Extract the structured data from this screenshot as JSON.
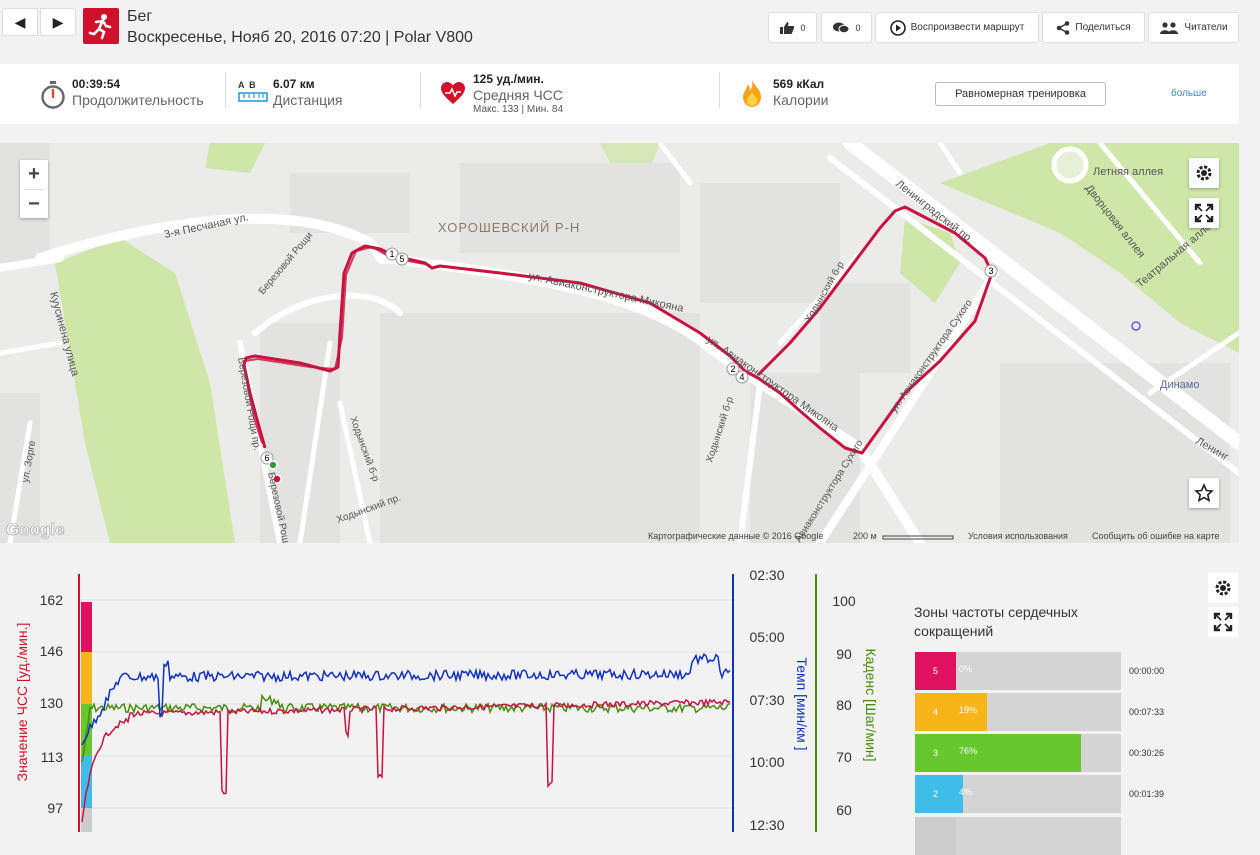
{
  "header": {
    "prev_label": "◀",
    "next_label": "▶",
    "sport": "Бег",
    "subtitle": "Воскресенье, Нояб 20, 2016 07:20 | Polar V800",
    "likes": "0",
    "comments": "0",
    "play_route": "Воспроизвести маршрут",
    "share": "Поделиться",
    "readers": "Читатели"
  },
  "stats": {
    "duration_value": "00:39:54",
    "duration_label": "Продолжительность",
    "distance_ab": "A  B",
    "distance_value": "6.07 км",
    "distance_label": "Дистанция",
    "hr_value": "125 уд./мин.",
    "hr_label": "Средняя ЧСС",
    "hr_sub": "Макс. 133  |  Мин. 84",
    "cal_value": "569 кКал",
    "cal_label": "Калории",
    "training_type": "Равномерная тренировка",
    "more": "больше"
  },
  "map": {
    "district": "ХОРОШЕВСКИЙ Р-Н",
    "streets": {
      "pesch": "3-я Песчаная ул.",
      "mikoyana1": "ул. Авиаконструктора Микояна",
      "mikoyana2": "ул. Авиаконструктора Микояна",
      "leningradsky": "Ленинградский пр.",
      "letnyaya": "Летняя аллея",
      "dvortsovaya": "Дворцовая аллея",
      "teatralnaya": "Театральная аллея",
      "khodynsky1": "Ходынский б-р",
      "khodynsky2": "Ходынский б-р",
      "khodynsky3": "Ходынский б-р",
      "sukhogo1": "ул. Авиаконструктора Сухого",
      "sukhogo2": "Авиаконструктора Сухого",
      "kusinena": "Куусинена улица",
      "berezovaya1": "Березовой Рощи",
      "berezovaya2": "Березовой Рощи пр.",
      "berezovaya3": "Березовой Рощи",
      "zorge": "ул. Зорге",
      "khodynsky_pr": "Ходынский пр.",
      "dinamo": "Динамо",
      "lenin_edge": "Ленинг"
    },
    "markers": [
      "1",
      "5",
      "2",
      "4",
      "3",
      "6"
    ],
    "zoom_in": "+",
    "zoom_out": "−",
    "google": "Google",
    "attrib_data": "Картографические данные © 2016 Google",
    "scale": "200 м",
    "terms": "Условия использования",
    "report": "Сообщить об ошибке на карте"
  },
  "chart_data": {
    "type": "line",
    "y_hr": {
      "label": "Значение ЧСС [уд./мин.]",
      "ticks": [
        "162",
        "146",
        "130",
        "113",
        "97"
      ],
      "color": "#d0112b"
    },
    "y_pace": {
      "label": "Темп [мин/км ]",
      "ticks": [
        "02:30",
        "05:00",
        "07:30",
        "10:00",
        "12:30"
      ],
      "color": "#1030c0"
    },
    "y_cad": {
      "label": "Каденс [Шаг/мин]",
      "ticks": [
        "100",
        "90",
        "80",
        "70",
        "60"
      ],
      "color": "#4a8a10"
    },
    "zone_colors": [
      "#e0125f",
      "#f7b519",
      "#66c72f",
      "#3fbde8",
      "#cccccc"
    ],
    "grid": true
  },
  "zones": {
    "title": "Зоны частоты сердечных сокращений",
    "items": [
      {
        "num": "5",
        "pct": "0%",
        "fraction": 0.0,
        "time": "00:00:00",
        "color": "#e0125f"
      },
      {
        "num": "4",
        "pct": "19%",
        "fraction": 0.19,
        "time": "00:07:33",
        "color": "#f7b519"
      },
      {
        "num": "3",
        "pct": "76%",
        "fraction": 0.76,
        "time": "00:30:26",
        "color": "#66c72f"
      },
      {
        "num": "2",
        "pct": "4%",
        "fraction": 0.04,
        "time": "00:01:39",
        "color": "#3fbde8"
      }
    ]
  }
}
